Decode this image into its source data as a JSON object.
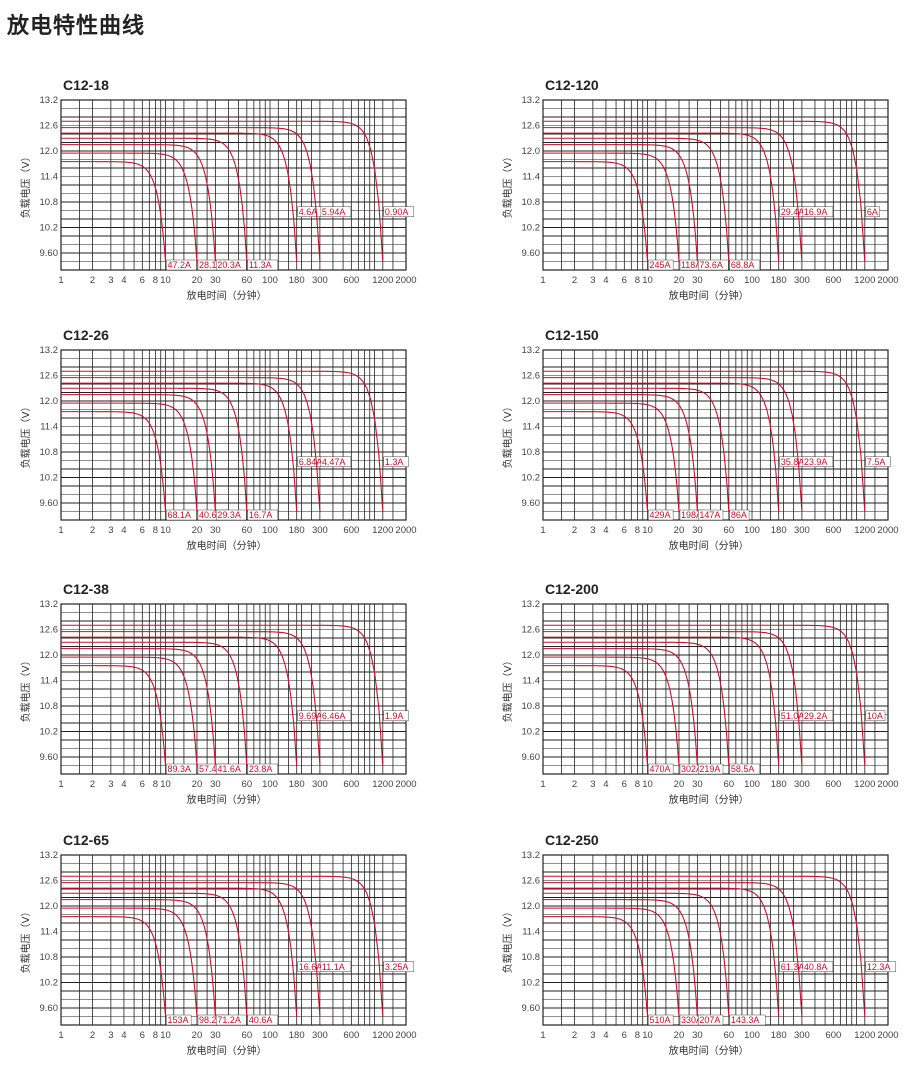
{
  "page": {
    "title": "放电特性曲线"
  },
  "style": {
    "curve_color": "#c8102e",
    "grid_color": "#222222"
  },
  "chart_data": [
    {
      "type": "line",
      "title": "C12-18",
      "xlabel": "放电时间（分钟）",
      "ylabel": "负载电压（V）",
      "x_scale": "log",
      "xlim": [
        1,
        2000
      ],
      "ylim": [
        9.2,
        13.2
      ],
      "x_ticks": [
        "1",
        "2",
        "3",
        "4",
        "6",
        "8",
        "10",
        "20",
        "30",
        "60",
        "100",
        "180",
        "300",
        "600",
        "1200",
        "2000"
      ],
      "y_ticks": [
        "13.2",
        "12.6",
        "12.0",
        "11.4",
        "10.8",
        "10.2",
        "9.60"
      ],
      "series": [
        {
          "label": "47.2A",
          "end_minutes": 10,
          "start_voltage": 11.75
        },
        {
          "label": "28.1A",
          "end_minutes": 20,
          "start_voltage": 11.95
        },
        {
          "label": "20.3A",
          "end_minutes": 30,
          "start_voltage": 12.15
        },
        {
          "label": "11.3A",
          "end_minutes": 60,
          "start_voltage": 12.3
        },
        {
          "label": "4.6A",
          "end_minutes": 180,
          "start_voltage": 12.42
        },
        {
          "label": "5.94A",
          "end_minutes": 300,
          "start_voltage": 12.55
        },
        {
          "label": "0.90A",
          "end_minutes": 1200,
          "start_voltage": 12.7
        }
      ]
    },
    {
      "type": "line",
      "title": "C12-120",
      "xlabel": "放电时间（分钟）",
      "ylabel": "负载电压（V）",
      "x_scale": "log",
      "xlim": [
        1,
        2000
      ],
      "ylim": [
        9.2,
        13.2
      ],
      "x_ticks": [
        "1",
        "2",
        "3",
        "4",
        "6",
        "8",
        "10",
        "20",
        "30",
        "60",
        "100",
        "180",
        "300",
        "600",
        "1200",
        "2000"
      ],
      "y_ticks": [
        "13.2",
        "12.6",
        "12.0",
        "11.4",
        "10.8",
        "10.2",
        "9.60"
      ],
      "series": [
        {
          "label": "245A",
          "end_minutes": 10,
          "start_voltage": 11.75
        },
        {
          "label": "118A",
          "end_minutes": 20,
          "start_voltage": 11.95
        },
        {
          "label": "73.6A",
          "end_minutes": 30,
          "start_voltage": 12.15
        },
        {
          "label": "68.8A",
          "end_minutes": 60,
          "start_voltage": 12.3
        },
        {
          "label": "29.4A",
          "end_minutes": 180,
          "start_voltage": 12.42
        },
        {
          "label": "16.9A",
          "end_minutes": 300,
          "start_voltage": 12.55
        },
        {
          "label": "6A",
          "end_minutes": 1200,
          "start_voltage": 12.7
        }
      ]
    },
    {
      "type": "line",
      "title": "C12-26",
      "xlabel": "放电时间（分钟）",
      "ylabel": "负载电压（V）",
      "x_scale": "log",
      "xlim": [
        1,
        2000
      ],
      "ylim": [
        9.2,
        13.2
      ],
      "x_ticks": [
        "1",
        "2",
        "3",
        "4",
        "6",
        "8",
        "10",
        "20",
        "30",
        "60",
        "100",
        "180",
        "300",
        "600",
        "1200",
        "2000"
      ],
      "y_ticks": [
        "13.2",
        "12.6",
        "12.0",
        "11.4",
        "10.8",
        "10.2",
        "9.60"
      ],
      "series": [
        {
          "label": "68.1A",
          "end_minutes": 10,
          "start_voltage": 11.75
        },
        {
          "label": "40.6A",
          "end_minutes": 20,
          "start_voltage": 11.95
        },
        {
          "label": "29.3A",
          "end_minutes": 30,
          "start_voltage": 12.15
        },
        {
          "label": "16.7A",
          "end_minutes": 60,
          "start_voltage": 12.3
        },
        {
          "label": "6.84A",
          "end_minutes": 180,
          "start_voltage": 12.42
        },
        {
          "label": "4.47A",
          "end_minutes": 300,
          "start_voltage": 12.55
        },
        {
          "label": "1.3A",
          "end_minutes": 1200,
          "start_voltage": 12.7
        }
      ]
    },
    {
      "type": "line",
      "title": "C12-150",
      "xlabel": "放电时间（分钟）",
      "ylabel": "负载电压（V）",
      "x_scale": "log",
      "xlim": [
        1,
        2000
      ],
      "ylim": [
        9.2,
        13.2
      ],
      "x_ticks": [
        "1",
        "2",
        "3",
        "4",
        "6",
        "8",
        "10",
        "20",
        "30",
        "60",
        "100",
        "180",
        "300",
        "600",
        "1200",
        "2000"
      ],
      "y_ticks": [
        "13.2",
        "12.6",
        "12.0",
        "11.4",
        "10.8",
        "10.2",
        "9.60"
      ],
      "series": [
        {
          "label": "429A",
          "end_minutes": 10,
          "start_voltage": 11.75
        },
        {
          "label": "198A",
          "end_minutes": 20,
          "start_voltage": 11.95
        },
        {
          "label": "147A",
          "end_minutes": 30,
          "start_voltage": 12.15
        },
        {
          "label": "86A",
          "end_minutes": 60,
          "start_voltage": 12.3
        },
        {
          "label": "35.8A",
          "end_minutes": 180,
          "start_voltage": 12.42
        },
        {
          "label": "23.9A",
          "end_minutes": 300,
          "start_voltage": 12.55
        },
        {
          "label": "7.5A",
          "end_minutes": 1200,
          "start_voltage": 12.7
        }
      ]
    },
    {
      "type": "line",
      "title": "C12-38",
      "xlabel": "放电时间（分钟）",
      "ylabel": "负载电压（V）",
      "x_scale": "log",
      "xlim": [
        1,
        2000
      ],
      "ylim": [
        9.2,
        13.2
      ],
      "x_ticks": [
        "1",
        "2",
        "3",
        "4",
        "6",
        "8",
        "10",
        "20",
        "30",
        "60",
        "100",
        "180",
        "300",
        "600",
        "1200",
        "2000"
      ],
      "y_ticks": [
        "13.2",
        "12.6",
        "12.0",
        "11.4",
        "10.8",
        "10.2",
        "9.60"
      ],
      "series": [
        {
          "label": "89.3A",
          "end_minutes": 10,
          "start_voltage": 11.75
        },
        {
          "label": "57.4A",
          "end_minutes": 20,
          "start_voltage": 11.95
        },
        {
          "label": "41.6A",
          "end_minutes": 30,
          "start_voltage": 12.15
        },
        {
          "label": "23.8A",
          "end_minutes": 60,
          "start_voltage": 12.3
        },
        {
          "label": "9.69A",
          "end_minutes": 180,
          "start_voltage": 12.42
        },
        {
          "label": "6.46A",
          "end_minutes": 300,
          "start_voltage": 12.55
        },
        {
          "label": "1.9A",
          "end_minutes": 1200,
          "start_voltage": 12.7
        }
      ]
    },
    {
      "type": "line",
      "title": "C12-200",
      "xlabel": "放电时间（分钟）",
      "ylabel": "负载电压（V）",
      "x_scale": "log",
      "xlim": [
        1,
        2000
      ],
      "ylim": [
        9.2,
        13.2
      ],
      "x_ticks": [
        "1",
        "2",
        "3",
        "4",
        "6",
        "8",
        "10",
        "20",
        "30",
        "60",
        "100",
        "180",
        "300",
        "600",
        "1200",
        "2000"
      ],
      "y_ticks": [
        "13.2",
        "12.6",
        "12.0",
        "11.4",
        "10.8",
        "10.2",
        "9.60"
      ],
      "series": [
        {
          "label": "470A",
          "end_minutes": 10,
          "start_voltage": 11.75
        },
        {
          "label": "302A",
          "end_minutes": 20,
          "start_voltage": 11.95
        },
        {
          "label": "219A",
          "end_minutes": 30,
          "start_voltage": 12.15
        },
        {
          "label": "58.5A",
          "end_minutes": 60,
          "start_voltage": 12.3
        },
        {
          "label": "51.0A",
          "end_minutes": 180,
          "start_voltage": 12.42
        },
        {
          "label": "29.2A",
          "end_minutes": 300,
          "start_voltage": 12.55
        },
        {
          "label": "10A",
          "end_minutes": 1200,
          "start_voltage": 12.7
        }
      ]
    },
    {
      "type": "line",
      "title": "C12-65",
      "xlabel": "放电时间（分钟）",
      "ylabel": "负载电压（V）",
      "x_scale": "log",
      "xlim": [
        1,
        2000
      ],
      "ylim": [
        9.2,
        13.2
      ],
      "x_ticks": [
        "1",
        "2",
        "3",
        "4",
        "6",
        "8",
        "10",
        "20",
        "30",
        "60",
        "100",
        "180",
        "300",
        "600",
        "1200",
        "2000"
      ],
      "y_ticks": [
        "13.2",
        "12.6",
        "12.0",
        "11.4",
        "10.8",
        "10.2",
        "9.60"
      ],
      "series": [
        {
          "label": "153A",
          "end_minutes": 10,
          "start_voltage": 11.75
        },
        {
          "label": "98.2A",
          "end_minutes": 20,
          "start_voltage": 11.95
        },
        {
          "label": "71.2A",
          "end_minutes": 30,
          "start_voltage": 12.15
        },
        {
          "label": "40.6A",
          "end_minutes": 60,
          "start_voltage": 12.3
        },
        {
          "label": "16.6A",
          "end_minutes": 180,
          "start_voltage": 12.42
        },
        {
          "label": "11.1A",
          "end_minutes": 300,
          "start_voltage": 12.55
        },
        {
          "label": "3.25A",
          "end_minutes": 1200,
          "start_voltage": 12.7
        }
      ]
    },
    {
      "type": "line",
      "title": "C12-250",
      "xlabel": "放电时间（分钟）",
      "ylabel": "负载电压（V）",
      "x_scale": "log",
      "xlim": [
        1,
        2000
      ],
      "ylim": [
        9.2,
        13.2
      ],
      "x_ticks": [
        "1",
        "2",
        "3",
        "4",
        "6",
        "8",
        "10",
        "20",
        "30",
        "60",
        "100",
        "180",
        "300",
        "600",
        "1200",
        "2000"
      ],
      "y_ticks": [
        "13.2",
        "12.6",
        "12.0",
        "11.4",
        "10.8",
        "10.2",
        "9.60"
      ],
      "series": [
        {
          "label": "510A",
          "end_minutes": 10,
          "start_voltage": 11.75
        },
        {
          "label": "330A",
          "end_minutes": 20,
          "start_voltage": 11.95
        },
        {
          "label": "207A",
          "end_minutes": 30,
          "start_voltage": 12.15
        },
        {
          "label": "143.3A",
          "end_minutes": 60,
          "start_voltage": 12.3
        },
        {
          "label": "61.3A",
          "end_minutes": 180,
          "start_voltage": 12.42
        },
        {
          "label": "40.8A",
          "end_minutes": 300,
          "start_voltage": 12.55
        },
        {
          "label": "12.3A",
          "end_minutes": 1200,
          "start_voltage": 12.7
        }
      ]
    }
  ]
}
